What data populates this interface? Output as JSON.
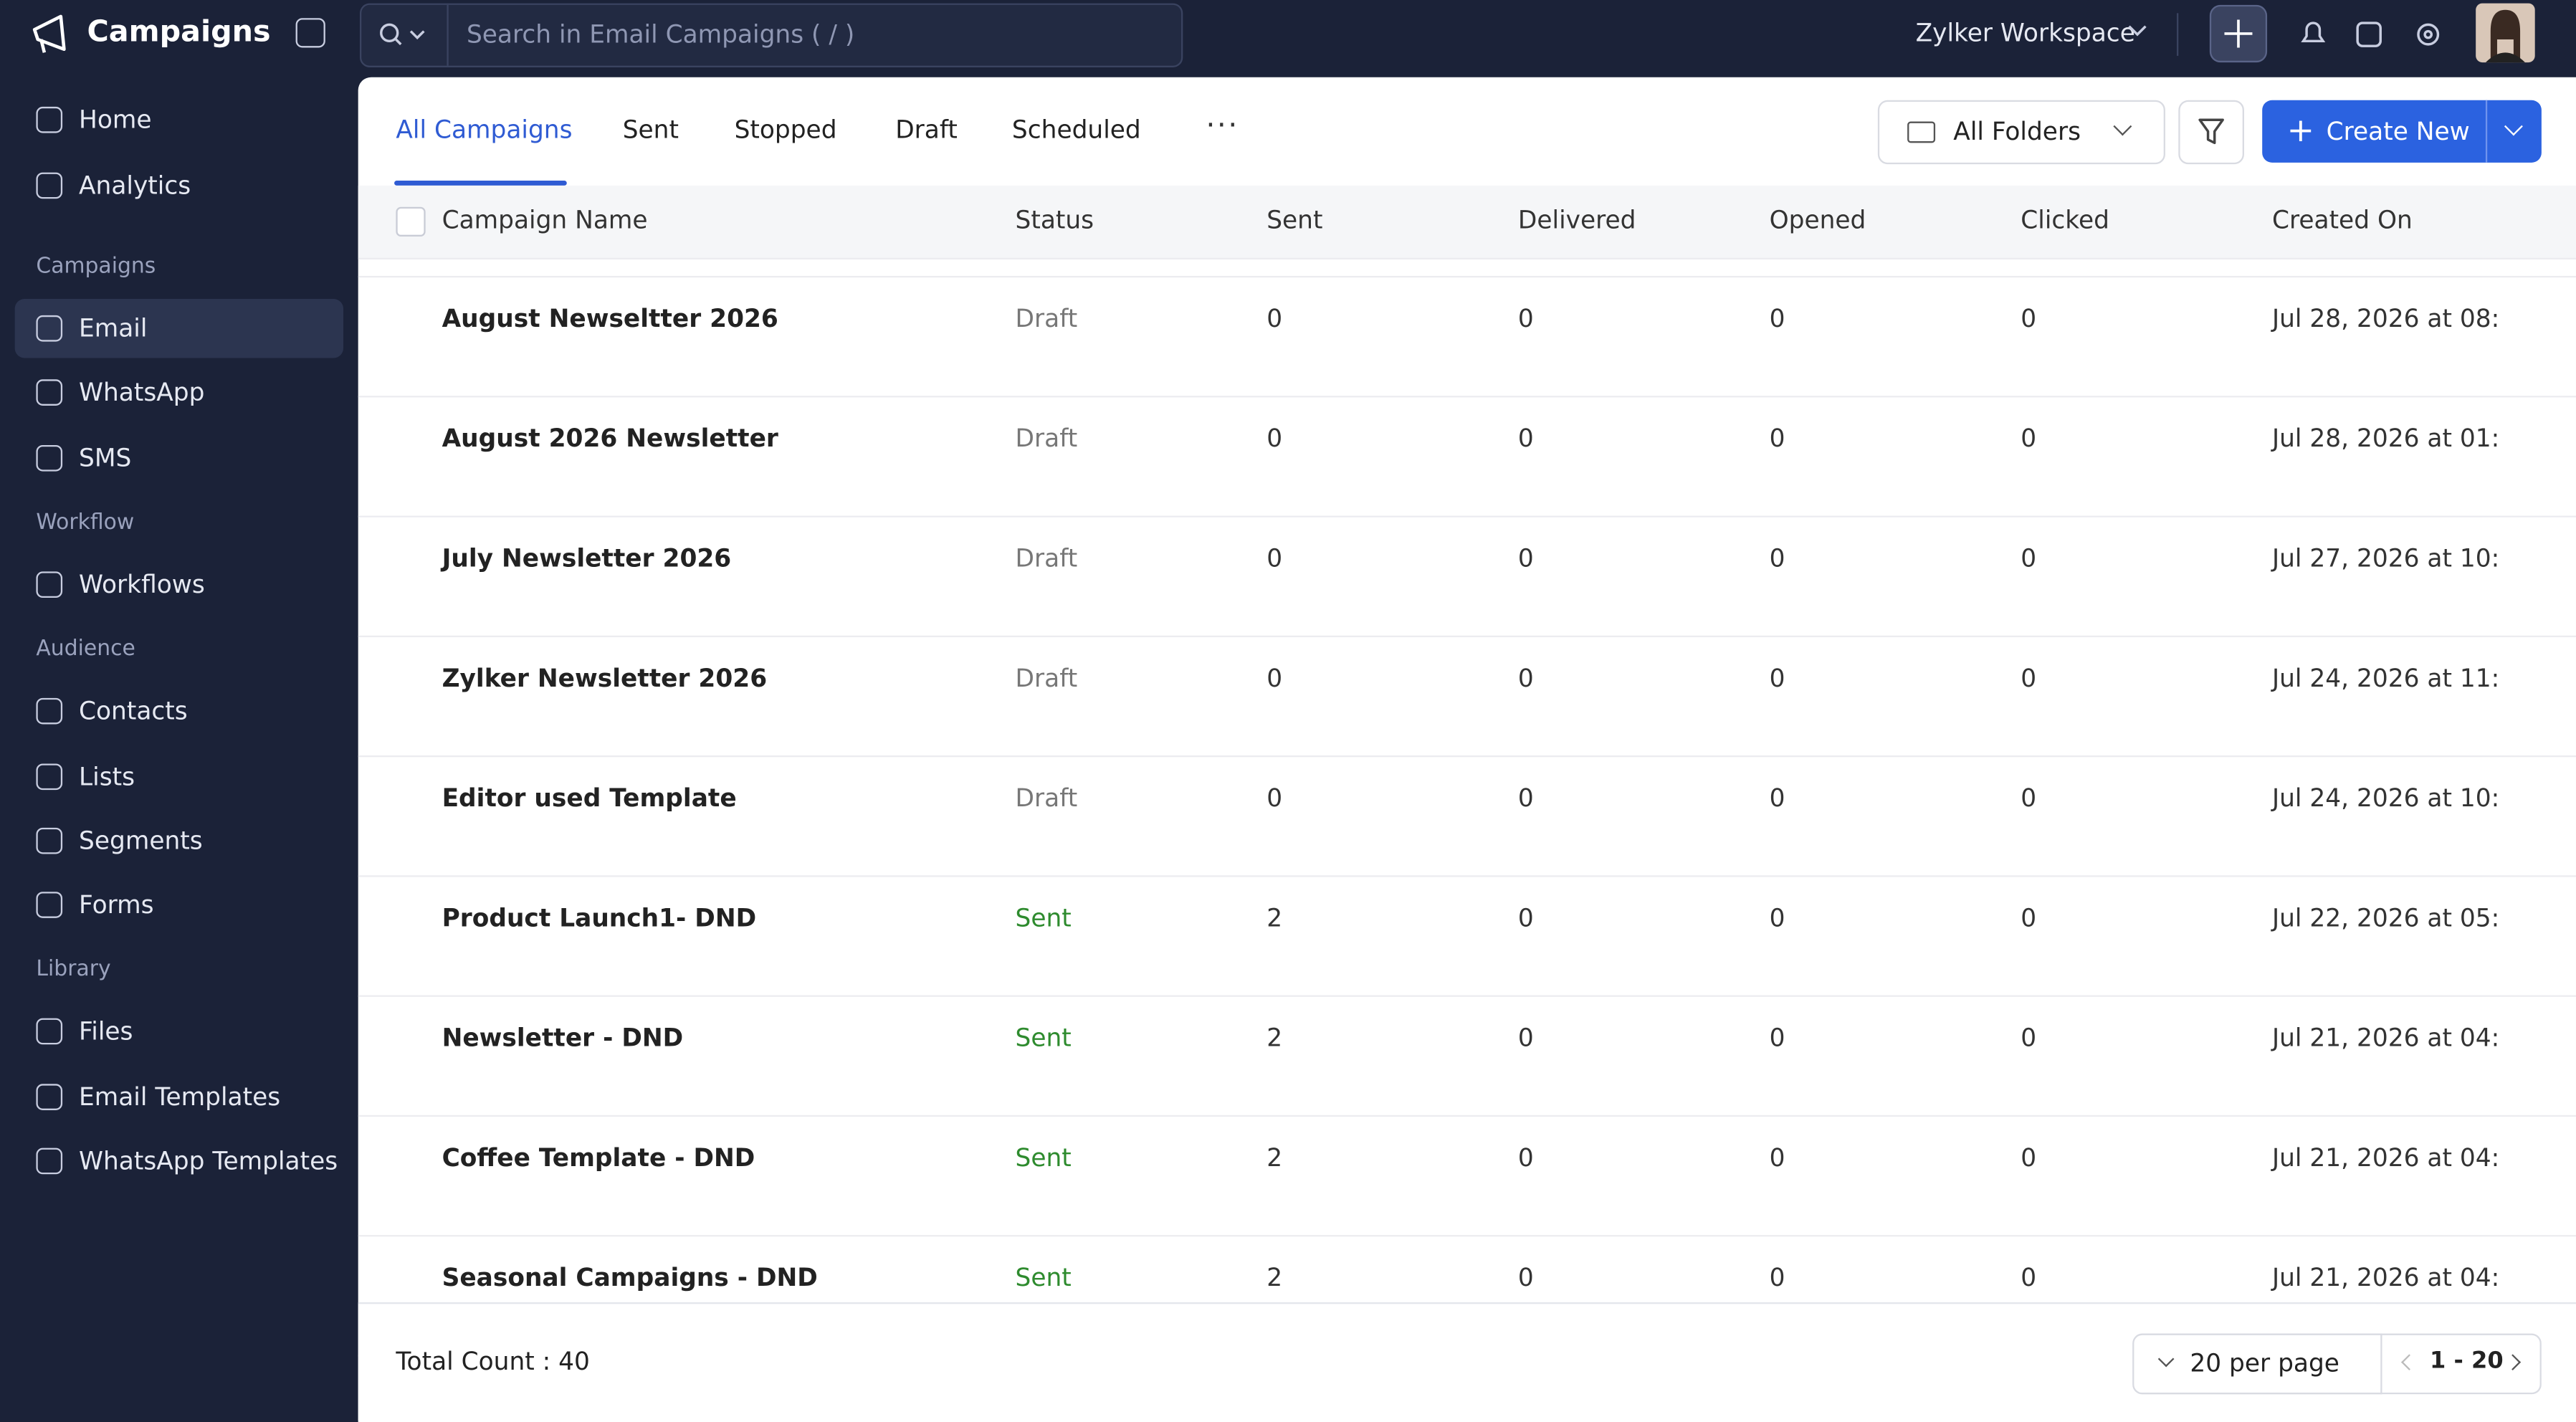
{
  "app": {
    "title": "Campaigns",
    "search_placeholder": "Search in Email Campaigns ( / )",
    "workspace": "Zylker Workspace"
  },
  "sidebar": {
    "top": [
      "Home",
      "Analytics"
    ],
    "sections": [
      {
        "title": "Campaigns",
        "items": [
          "Email",
          "WhatsApp",
          "SMS"
        ]
      },
      {
        "title": "Workflow",
        "items": [
          "Workflows"
        ]
      },
      {
        "title": "Audience",
        "items": [
          "Contacts",
          "Lists",
          "Segments",
          "Forms"
        ]
      },
      {
        "title": "Library",
        "items": [
          "Files",
          "Email Templates",
          "WhatsApp Templates"
        ]
      }
    ],
    "active": "Email"
  },
  "tabs": [
    "All Campaigns",
    "Sent",
    "Stopped",
    "Draft",
    "Scheduled"
  ],
  "toolbar": {
    "folder": "All Folders",
    "create": "Create New"
  },
  "table": {
    "columns": [
      "Campaign Name",
      "Status",
      "Sent",
      "Delivered",
      "Opened",
      "Clicked",
      "Created On"
    ],
    "rows": [
      [
        "August Newseltter 2026",
        "Draft",
        0,
        0,
        0,
        0,
        "Jul 28, 2026 at 08:"
      ],
      [
        "August 2026 Newsletter",
        "Draft",
        0,
        0,
        0,
        0,
        "Jul 28, 2026 at 01:"
      ],
      [
        "July Newsletter 2026",
        "Draft",
        0,
        0,
        0,
        0,
        "Jul 27, 2026 at 10:"
      ],
      [
        "Zylker Newsletter 2026",
        "Draft",
        0,
        0,
        0,
        0,
        "Jul 24, 2026 at 11:"
      ],
      [
        "Editor used Template",
        "Draft",
        0,
        0,
        0,
        0,
        "Jul 24, 2026 at 10:"
      ],
      [
        "Product Launch1- DND",
        "Sent",
        2,
        0,
        0,
        0,
        "Jul 22, 2026 at 05:"
      ],
      [
        "Newsletter - DND",
        "Sent",
        2,
        0,
        0,
        0,
        "Jul 21, 2026 at 04:"
      ],
      [
        "Coffee Template - DND",
        "Sent",
        2,
        0,
        0,
        0,
        "Jul 21, 2026 at 04:"
      ],
      [
        "Seasonal Campaigns - DND",
        "Sent",
        2,
        0,
        0,
        0,
        "Jul 21, 2026 at 04:"
      ]
    ]
  },
  "footer": {
    "total": "Total Count : 40",
    "per_page": "20 per page",
    "range": "1 - 20"
  }
}
